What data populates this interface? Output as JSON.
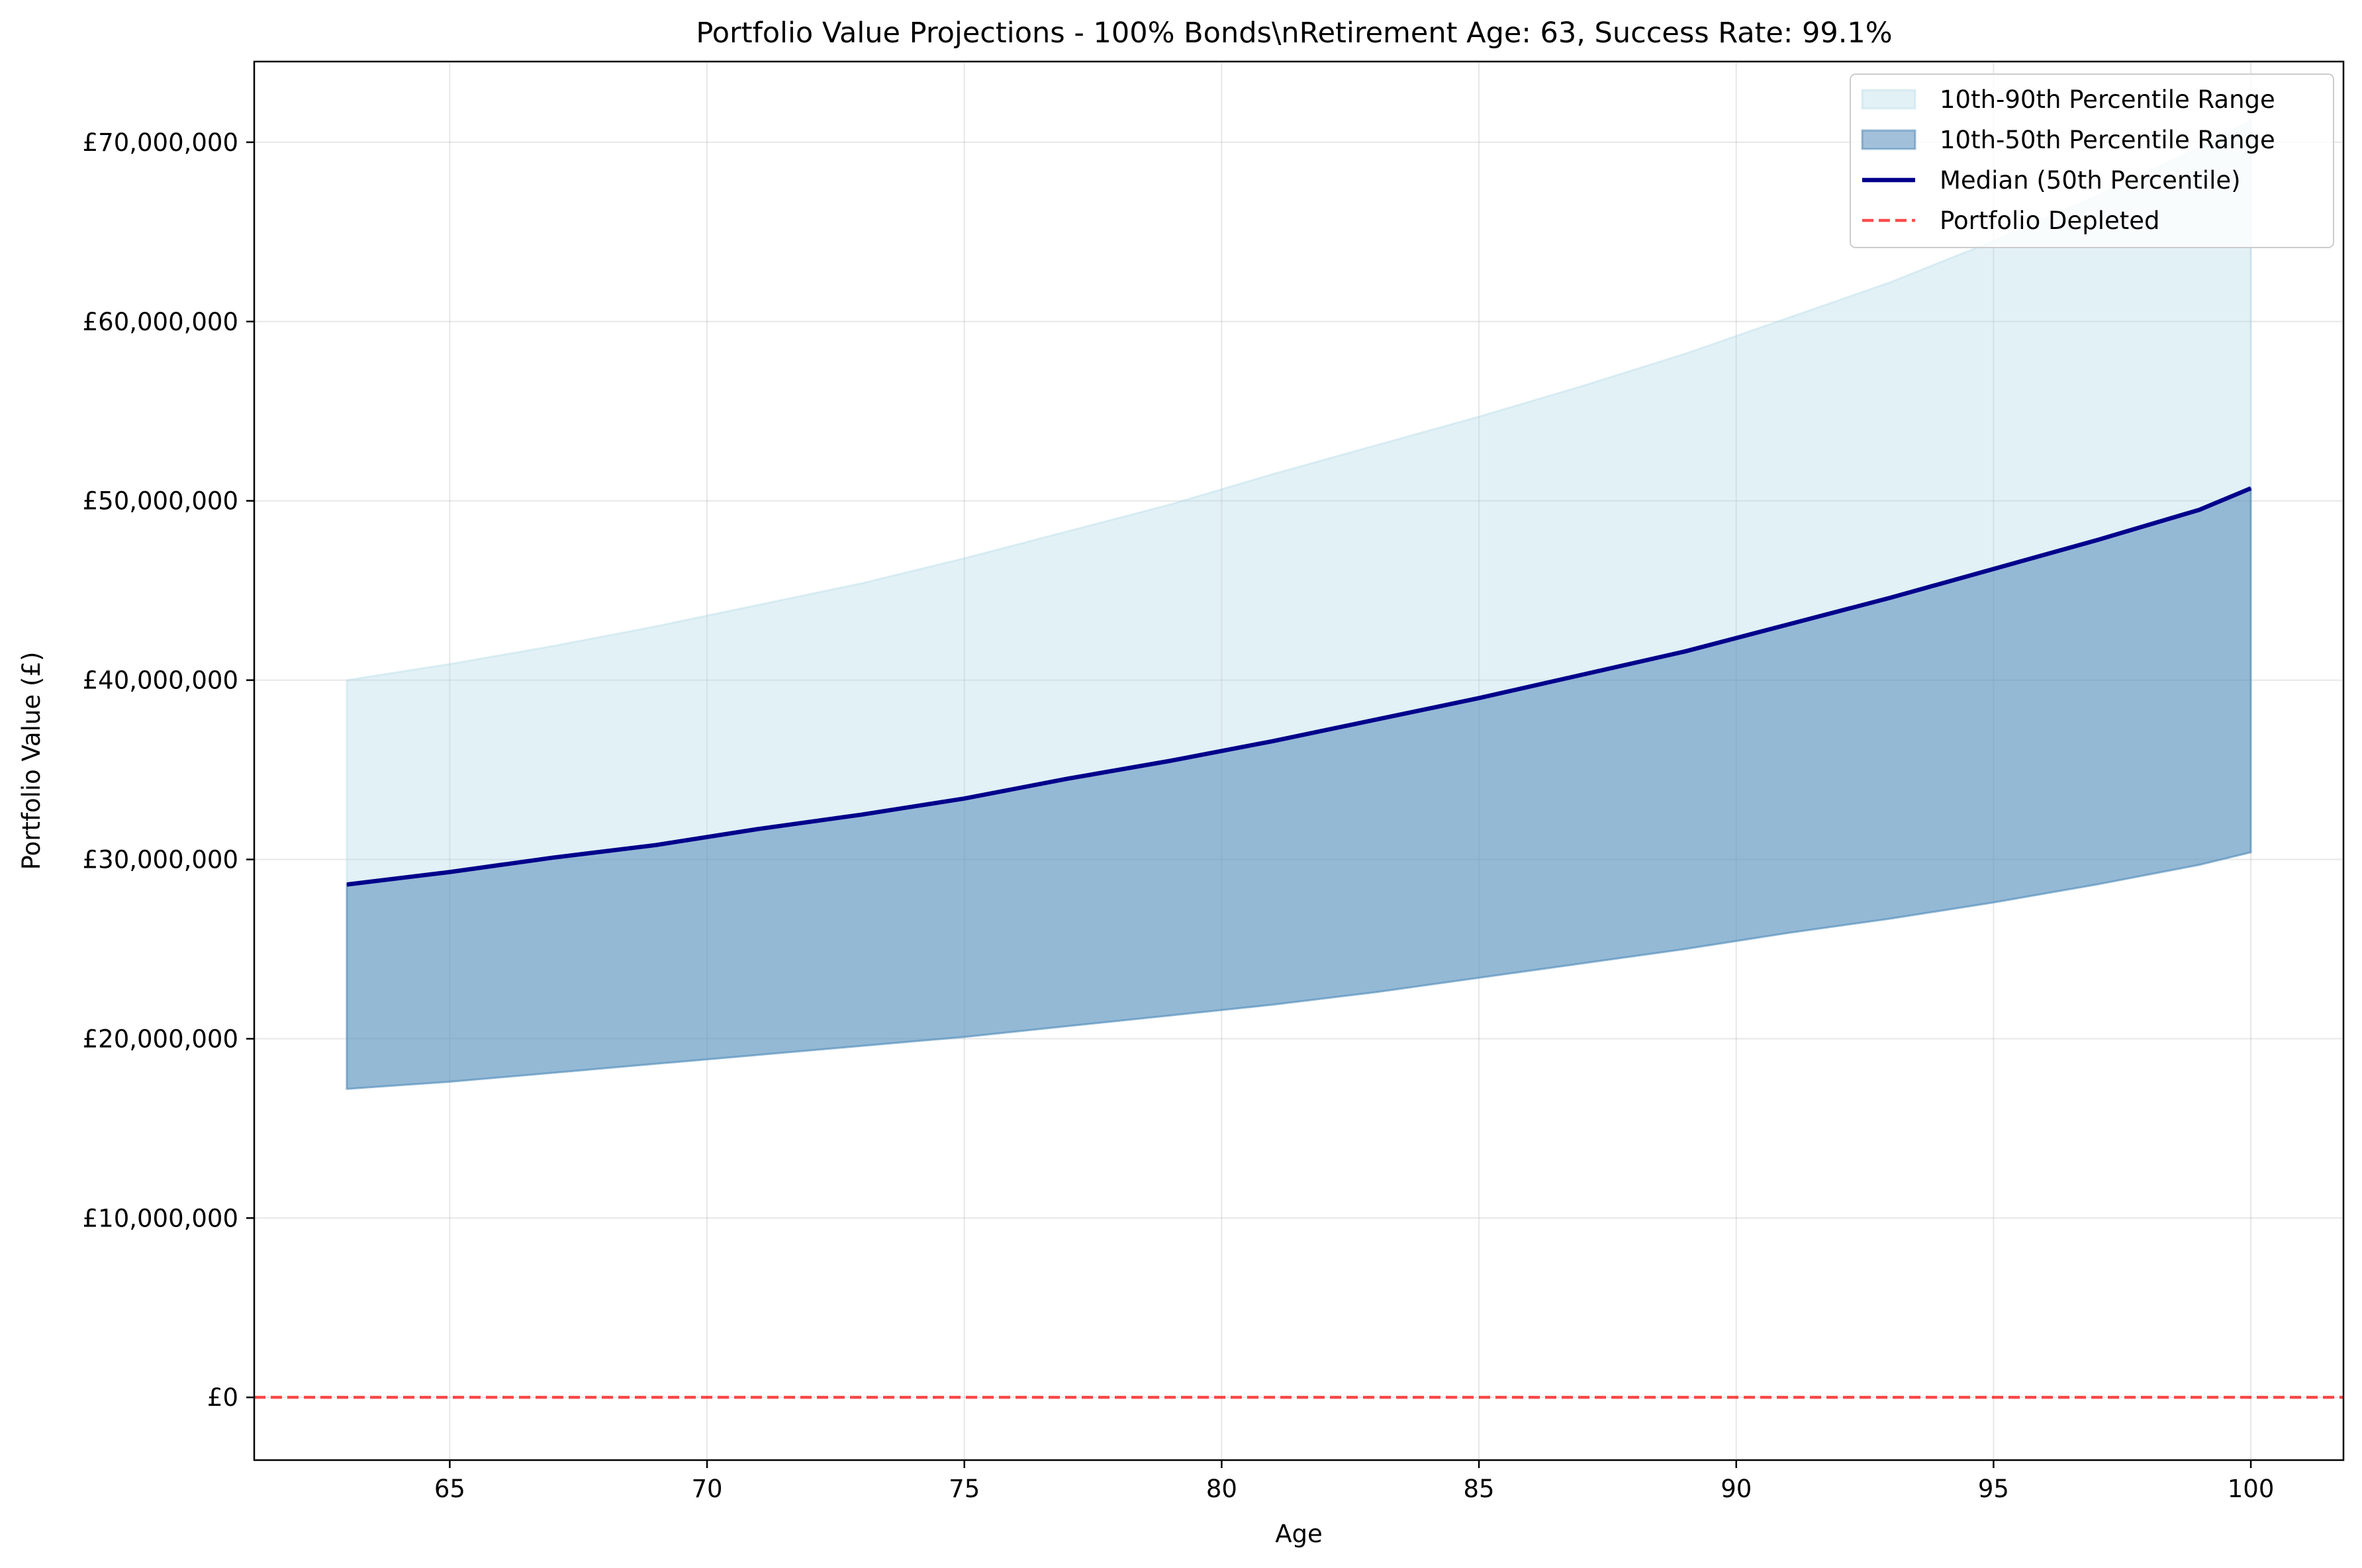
{
  "chart_data": {
    "type": "area",
    "title": "Portfolio Value Projections - 100% Bonds\\nRetirement Age: 63, Success Rate: 99.1%",
    "xlabel": "Age",
    "ylabel": "Portfolio Value (£)",
    "xlim": [
      61.2,
      101.8
    ],
    "ylim": [
      -3500000,
      74500000
    ],
    "x_ticks": [
      65,
      70,
      75,
      80,
      85,
      90,
      95,
      100
    ],
    "y_ticks": [
      0,
      10000000,
      20000000,
      30000000,
      40000000,
      50000000,
      60000000,
      70000000
    ],
    "y_tick_labels": [
      "£0",
      "£10,000,000",
      "£20,000,000",
      "£30,000,000",
      "£40,000,000",
      "£50,000,000",
      "£60,000,000",
      "£70,000,000"
    ],
    "grid": true,
    "legend_position": "top-right",
    "x": [
      63,
      65,
      67,
      69,
      71,
      73,
      75,
      77,
      79,
      81,
      83,
      85,
      87,
      89,
      91,
      93,
      95,
      97,
      99,
      100
    ],
    "series": [
      {
        "name": "10th-90th Percentile Range",
        "kind": "band",
        "color": "#add8e6",
        "lower": [
          17.2,
          17.6,
          18.1,
          18.6,
          19.1,
          19.6,
          20.1,
          20.7,
          21.3,
          21.9,
          22.6,
          23.4,
          24.2,
          25.0,
          25.9,
          26.7,
          27.6,
          28.6,
          29.7,
          30.4
        ],
        "upper": [
          40.0,
          40.9,
          41.9,
          43.0,
          44.2,
          45.4,
          46.8,
          48.3,
          49.8,
          51.5,
          53.1,
          54.7,
          56.4,
          58.2,
          60.2,
          62.2,
          64.5,
          67.0,
          69.7,
          71.2
        ]
      },
      {
        "name": "10th-50th Percentile Range",
        "kind": "band",
        "color": "#4682b4",
        "lower": [
          17.2,
          17.6,
          18.1,
          18.6,
          19.1,
          19.6,
          20.1,
          20.7,
          21.3,
          21.9,
          22.6,
          23.4,
          24.2,
          25.0,
          25.9,
          26.7,
          27.6,
          28.6,
          29.7,
          30.4
        ],
        "upper": [
          28.6,
          29.3,
          30.1,
          30.8,
          31.7,
          32.5,
          33.4,
          34.5,
          35.5,
          36.6,
          37.8,
          39.0,
          40.3,
          41.6,
          43.1,
          44.6,
          46.2,
          47.8,
          49.5,
          50.7
        ]
      },
      {
        "name": "Median (50th Percentile)",
        "kind": "line",
        "color": "#00008b",
        "values": [
          28.6,
          29.3,
          30.1,
          30.8,
          31.7,
          32.5,
          33.4,
          34.5,
          35.5,
          36.6,
          37.8,
          39.0,
          40.3,
          41.6,
          43.1,
          44.6,
          46.2,
          47.8,
          49.5,
          50.7
        ]
      },
      {
        "name": "Portfolio Depleted",
        "kind": "hline",
        "color": "#ff0000",
        "value": 0
      }
    ],
    "value_units": "millions of £"
  }
}
